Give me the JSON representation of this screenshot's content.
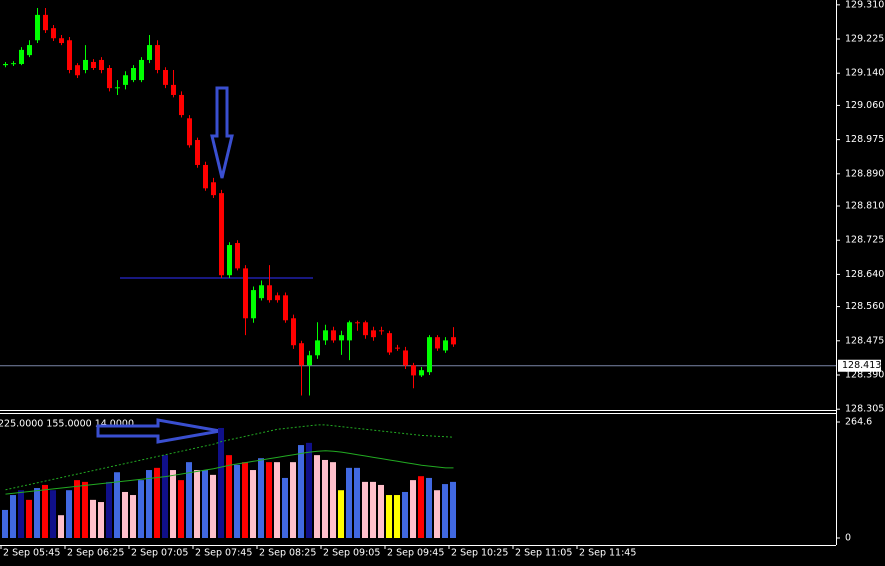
{
  "chart_data": [
    {
      "type": "candlestick",
      "open": [
        129.16,
        129.163,
        129.163,
        129.185,
        129.222,
        129.285,
        129.252,
        129.227,
        129.222,
        129.16,
        129.148,
        129.168,
        129.173,
        129.153,
        129.103,
        129.111,
        129.123,
        129.123,
        129.173,
        129.21,
        129.148,
        129.111,
        129.086,
        129.028,
        128.974,
        128.912,
        128.869,
        128.842,
        128.638,
        128.718,
        128.655,
        128.531,
        128.581,
        128.613,
        128.588,
        128.588,
        128.531,
        128.469,
        128.414,
        128.439,
        128.476,
        128.501,
        128.476,
        128.476,
        128.521,
        128.521,
        128.501,
        128.501,
        128.494,
        128.458,
        128.451,
        128.414,
        128.389,
        128.397,
        128.484,
        128.451,
        128.484
      ],
      "high": [
        129.168,
        129.17,
        129.205,
        129.222,
        129.302,
        129.302,
        129.26,
        129.235,
        129.23,
        129.165,
        129.21,
        129.175,
        129.18,
        129.16,
        129.123,
        129.145,
        129.16,
        129.18,
        129.235,
        129.222,
        129.155,
        129.148,
        129.095,
        129.036,
        128.98,
        128.92,
        128.88,
        128.85,
        128.72,
        128.725,
        128.663,
        128.61,
        128.625,
        128.663,
        128.595,
        128.595,
        128.54,
        128.475,
        128.45,
        128.521,
        128.515,
        128.51,
        128.5,
        128.525,
        128.525,
        128.525,
        128.51,
        128.51,
        128.5,
        128.465,
        128.46,
        128.42,
        128.41,
        128.489,
        128.489,
        128.484,
        128.509
      ],
      "low": [
        129.155,
        129.158,
        129.16,
        129.18,
        129.215,
        129.24,
        129.22,
        129.21,
        129.14,
        129.128,
        129.14,
        129.148,
        129.14,
        129.095,
        129.086,
        129.1,
        129.118,
        129.118,
        129.165,
        129.14,
        129.103,
        129.08,
        129.03,
        128.955,
        128.905,
        128.848,
        128.83,
        128.631,
        128.631,
        128.65,
        128.489,
        128.52,
        128.575,
        128.57,
        128.57,
        128.52,
        128.455,
        128.339,
        128.339,
        128.43,
        128.465,
        128.47,
        128.44,
        128.427,
        128.5,
        128.48,
        128.475,
        128.49,
        128.44,
        128.45,
        128.405,
        128.357,
        128.385,
        128.39,
        128.45,
        128.445,
        128.46
      ],
      "close": [
        129.163,
        129.165,
        129.198,
        129.21,
        129.285,
        129.247,
        129.227,
        129.215,
        129.148,
        129.135,
        129.173,
        129.153,
        129.148,
        129.103,
        129.105,
        129.135,
        129.153,
        129.173,
        129.21,
        129.148,
        129.111,
        129.086,
        129.036,
        128.961,
        128.912,
        128.854,
        128.837,
        128.638,
        128.713,
        128.655,
        128.531,
        128.601,
        128.613,
        128.576,
        128.576,
        128.526,
        128.464,
        128.414,
        128.439,
        128.476,
        128.501,
        128.476,
        128.489,
        128.521,
        128.519,
        128.489,
        128.484,
        128.499,
        128.446,
        128.456,
        128.414,
        128.389,
        128.402,
        128.484,
        128.456,
        128.476,
        128.466
      ],
      "up_color": "#00ff00",
      "down_color": "#ff0000",
      "ylim": [
        128.303,
        129.322
      ],
      "yticks": [
        {
          "value": 129.31,
          "label": "129.310"
        },
        129.225,
        {
          "value": 129.14,
          "label": "129.140"
        },
        {
          "value": 129.06,
          "label": "129.060"
        },
        128.975,
        {
          "value": 128.89,
          "label": "128.890"
        },
        {
          "value": 128.81,
          "label": "128.810"
        },
        128.725,
        {
          "value": 128.64,
          "label": "128.640"
        },
        {
          "value": 128.56,
          "label": "128.560"
        },
        128.475,
        {
          "value": 128.39,
          "label": "128.390"
        },
        128.305
      ],
      "hline": {
        "value": 128.631,
        "color": "#3030ff"
      },
      "current_price": 128.413,
      "xticks": [
        "2 Sep 05:45",
        "2 Sep 06:25",
        "2 Sep 07:05",
        "2 Sep 07:45",
        "2 Sep 08:25",
        "2 Sep 09:05",
        "2 Sep 09:45",
        "2 Sep 10:25",
        "2 Sep 11:05",
        "2 Sep 11:45"
      ]
    },
    {
      "type": "bar",
      "title": "225.0000 155.0000 14.0000",
      "values": [
        64,
        98,
        109,
        87,
        114,
        121,
        109,
        52,
        109,
        132,
        128,
        87,
        82,
        128,
        150,
        105,
        98,
        132,
        155,
        160,
        189,
        155,
        132,
        173,
        155,
        155,
        144,
        251,
        189,
        167,
        173,
        155,
        182,
        173,
        173,
        137,
        173,
        212,
        217,
        189,
        178,
        173,
        109,
        160,
        160,
        128,
        128,
        121,
        98,
        98,
        105,
        132,
        141,
        137,
        109,
        123,
        128
      ],
      "colors": [
        "#4169e1",
        "#4169e1",
        "#10108a",
        "#ff0000",
        "#4169e1",
        "#ff0000",
        "#10108a",
        "#ffc0cb",
        "#4169e1",
        "#ff0000",
        "#ff0000",
        "#ffc0cb",
        "#ffc0cb",
        "#10108a",
        "#4169e1",
        "#ffc0cb",
        "#ffc0cb",
        "#4169e1",
        "#4169e1",
        "#ff0000",
        "#10108a",
        "#ffc0cb",
        "#ff0000",
        "#4169e1",
        "#ffc0cb",
        "#4169e1",
        "#ffc0cb",
        "#10108a",
        "#ff0000",
        "#4169e1",
        "#ff0000",
        "#ffc0cb",
        "#4169e1",
        "#ff0000",
        "#ffc0cb",
        "#4169e1",
        "#ffc0cb",
        "#4169e1",
        "#10108a",
        "#ffc0cb",
        "#ffc0cb",
        "#ffc0cb",
        "#ffff00",
        "#4169e1",
        "#4169e1",
        "#ffc0cb",
        "#ffc0cb",
        "#ffc0cb",
        "#ffff00",
        "#ffff00",
        "#4169e1",
        "#ffc0cb",
        "#ff0000",
        "#4169e1",
        "#ffc0cb",
        "#4169e1",
        "#4169e1"
      ],
      "series": [
        {
          "color": "#22aa22",
          "dashed": false,
          "values": [
            100,
            102,
            104,
            106,
            108,
            110,
            112,
            114,
            116,
            118,
            120,
            122,
            124,
            126,
            128,
            130,
            132,
            134,
            136,
            138,
            140,
            143,
            146,
            149,
            152,
            155,
            158,
            162,
            166,
            169,
            172,
            175,
            178,
            181,
            184,
            187,
            190,
            193,
            196,
            198,
            199,
            198,
            196,
            193,
            190,
            187,
            184,
            181,
            178,
            175,
            172,
            169,
            166,
            164,
            162,
            160,
            160
          ]
        },
        {
          "color": "#22aa22",
          "dashed": true,
          "values": [
            110,
            114,
            118,
            122,
            126,
            130,
            134,
            138,
            142,
            146,
            150,
            154,
            158,
            162,
            166,
            170,
            174,
            178,
            182,
            186,
            190,
            194,
            198,
            202,
            206,
            210,
            214,
            220,
            224,
            228,
            232,
            236,
            240,
            244,
            248,
            250,
            252,
            254,
            256,
            258,
            258,
            256,
            254,
            252,
            250,
            248,
            246,
            244,
            242,
            240,
            238,
            236,
            234,
            233,
            232,
            231,
            230
          ]
        }
      ],
      "ylim": [
        0,
        264.6
      ],
      "yticks": [
        264.6,
        0
      ]
    }
  ]
}
